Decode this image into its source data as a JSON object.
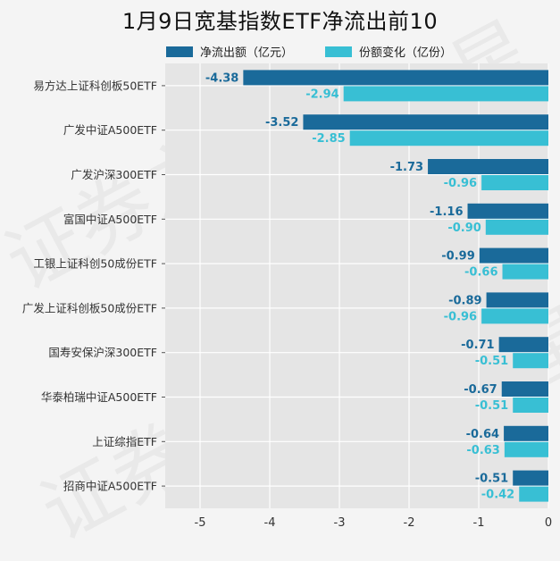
{
  "chart_data": {
    "type": "bar",
    "orientation": "horizontal",
    "title": "1月9日宽基指数ETF净流出前10",
    "categories": [
      "易方达上证科创板50ETF",
      "广发中证A500ETF",
      "广发沪深300ETF",
      "富国中证A500ETF",
      "工银上证科创50成份ETF",
      "广发上证科创板50成份ETF",
      "国寿安保沪深300ETF",
      "华泰柏瑞中证A500ETF",
      "上证综指ETF",
      "招商中证A500ETF"
    ],
    "series": [
      {
        "name": "净流出额（亿元）",
        "color": "#1a6a9a",
        "values": [
          -4.38,
          -3.52,
          -1.73,
          -1.16,
          -0.99,
          -0.89,
          -0.71,
          -0.67,
          -0.64,
          -0.51
        ],
        "labels": [
          "-4.38",
          "-3.52",
          "-1.73",
          "-1.16",
          "-0.99",
          "-0.89",
          "-0.71",
          "-0.67",
          "-0.64",
          "-0.51"
        ]
      },
      {
        "name": "份额变化（亿份）",
        "color": "#38bfd4",
        "values": [
          -2.94,
          -2.85,
          -0.96,
          -0.9,
          -0.66,
          -0.96,
          -0.51,
          -0.51,
          -0.63,
          -0.42
        ],
        "labels": [
          "-2.94",
          "-2.85",
          "-0.96",
          "-0.90",
          "-0.66",
          "-0.96",
          "-0.51",
          "-0.51",
          "-0.63",
          "-0.42"
        ]
      }
    ],
    "xlim": [
      -5.5,
      0
    ],
    "xticks": [
      -5,
      -4,
      -3,
      -2,
      -1,
      0
    ],
    "xtick_labels": [
      "-5",
      "-4",
      "-3",
      "-2",
      "-1",
      "0"
    ],
    "xlabel": "",
    "ylabel": "",
    "grid": true,
    "legend_position": "top"
  },
  "watermark_text": "证券之星"
}
